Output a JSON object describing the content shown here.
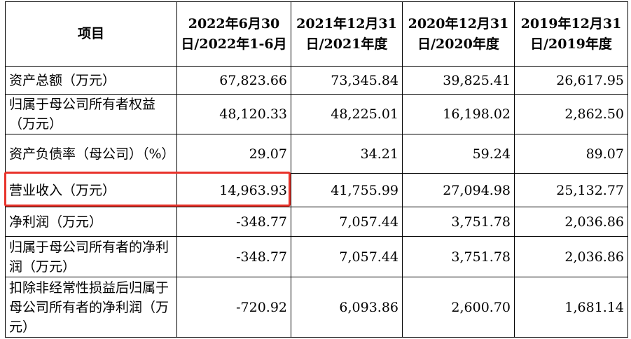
{
  "table": {
    "headers": [
      "项目",
      "2022年6月30日/2022年1-6月",
      "2021年12月31日/2021年度",
      "2020年12月31日/2020年度",
      "2019年12月31日/2019年度"
    ],
    "rows": [
      {
        "label": "资产总额（万元）",
        "values": [
          "67,823.66",
          "73,345.84",
          "39,825.41",
          "26,617.95"
        ]
      },
      {
        "label": "归属于母公司所有者权益（万元）",
        "values": [
          "48,120.33",
          "48,225.01",
          "16,198.02",
          "2,862.50"
        ]
      },
      {
        "label": "资产负债率（母公司）（%）",
        "values": [
          "29.07",
          "34.21",
          "59.24",
          "89.07"
        ]
      },
      {
        "label": "营业收入（万元）",
        "values": [
          "14,963.93",
          "41,755.99",
          "27,094.98",
          "25,132.77"
        ]
      },
      {
        "label": "净利润（万元）",
        "values": [
          "-348.77",
          "7,057.44",
          "3,751.78",
          "2,036.86"
        ]
      },
      {
        "label": "归属于母公司所有者的净利润（万元）",
        "values": [
          "-348.77",
          "7,057.44",
          "3,751.78",
          "2,036.86"
        ]
      },
      {
        "label": "扣除非经常性损益后归属于母公司所有者的净利润（万元）",
        "values": [
          "-720.92",
          "6,093.86",
          "2,600.70",
          "1,681.14"
        ]
      }
    ]
  },
  "highlight_color": "#e8332b"
}
